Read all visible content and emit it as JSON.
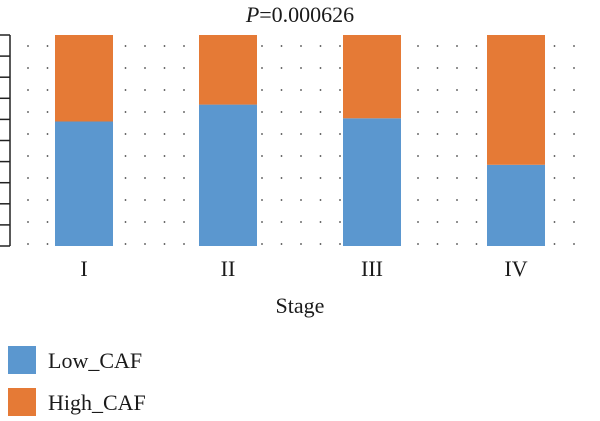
{
  "chart_data": {
    "type": "bar",
    "stacked": true,
    "normalized": true,
    "title_p_letter": "P",
    "title_p_value": "=0.000626",
    "xlabel": "Stage",
    "ylabel": "",
    "categories": [
      "I",
      "II",
      "III",
      "IV"
    ],
    "ylim": [
      0,
      1
    ],
    "grid": "dotted",
    "legend_position": "bottom-left",
    "series": [
      {
        "name": "Low_CAF",
        "color": "#5b97cf",
        "values": [
          0.59,
          0.67,
          0.605,
          0.385
        ]
      },
      {
        "name": "High_CAF",
        "color": "#e57a36",
        "values": [
          0.41,
          0.33,
          0.395,
          0.615
        ]
      }
    ]
  }
}
